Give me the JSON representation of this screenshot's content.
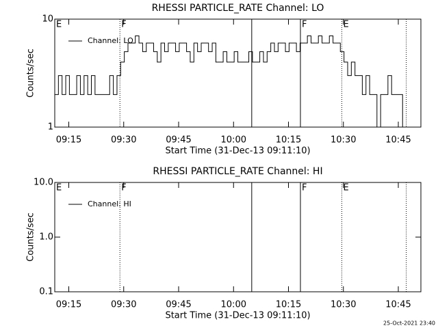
{
  "chart_data": [
    {
      "type": "line",
      "step": true,
      "log_y": true,
      "title": "RHESSI PARTICLE_RATE Channel: LO",
      "y_label": "Counts/sec",
      "x_label": "Start Time (31-Dec-13 09:11:10)",
      "xlim": [
        0,
        100
      ],
      "ylim": [
        1,
        10
      ],
      "xticks": [
        {
          "value": 3.833,
          "label": "09:15"
        },
        {
          "value": 18.833,
          "label": "09:30"
        },
        {
          "value": 33.833,
          "label": "09:45"
        },
        {
          "value": 48.833,
          "label": "10:00"
        },
        {
          "value": 63.833,
          "label": "10:15"
        },
        {
          "value": 78.833,
          "label": "10:30"
        },
        {
          "value": 93.833,
          "label": "10:45"
        }
      ],
      "yticks": [
        1,
        10
      ],
      "annotations": [
        {
          "x": 0,
          "label": "E"
        },
        {
          "x": 17.8,
          "label": "F",
          "line": "dotted"
        },
        {
          "x": 53.8,
          "line": "solid"
        },
        {
          "x": 67.1,
          "label": "F",
          "line": "solid"
        },
        {
          "x": 78.4,
          "label": "E",
          "line": "dotted"
        },
        {
          "x": 96,
          "line": "dotted"
        }
      ],
      "x": [
        0,
        1,
        2,
        3,
        4,
        5,
        6,
        7,
        8,
        9,
        10,
        11,
        12,
        13,
        14,
        15,
        16,
        17,
        18,
        19,
        20,
        21,
        22,
        23,
        24,
        25,
        26,
        27,
        28,
        29,
        30,
        31,
        32,
        33,
        34,
        35,
        36,
        37,
        38,
        39,
        40,
        41,
        42,
        43,
        44,
        45,
        46,
        47,
        48,
        49,
        50,
        51,
        52,
        53,
        54,
        55,
        56,
        57,
        58,
        59,
        60,
        61,
        62,
        63,
        64,
        65,
        66,
        67,
        68,
        69,
        70,
        71,
        72,
        73,
        74,
        75,
        76,
        77,
        78,
        79,
        80,
        81,
        82,
        83,
        84,
        85,
        86,
        87,
        88,
        89,
        90,
        91,
        92,
        93,
        94,
        95
      ],
      "series": [
        {
          "name": "Channel: LO",
          "color": "#000000",
          "values": [
            2,
            3,
            2,
            3,
            2,
            2,
            3,
            2,
            3,
            2,
            3,
            2,
            2,
            2,
            2,
            3,
            2,
            3,
            4,
            5,
            6,
            6,
            7,
            6,
            5,
            6,
            6,
            5,
            4,
            6,
            5,
            6,
            6,
            5,
            6,
            6,
            5,
            4,
            6,
            5,
            6,
            6,
            5,
            6,
            4,
            4,
            5,
            4,
            4,
            5,
            4,
            4,
            4,
            5,
            4,
            4,
            5,
            4,
            5,
            6,
            5,
            6,
            6,
            5,
            6,
            6,
            5,
            6,
            6,
            7,
            6,
            6,
            7,
            6,
            6,
            7,
            6,
            6,
            5,
            4,
            3,
            4,
            3,
            3,
            2,
            3,
            2,
            2,
            1,
            2,
            2,
            3,
            2,
            2,
            2,
            1
          ]
        }
      ]
    },
    {
      "type": "line",
      "step": true,
      "log_y": true,
      "title": "RHESSI PARTICLE_RATE Channel: HI",
      "y_label": "Counts/sec",
      "x_label": "Start Time (31-Dec-13 09:11:10)",
      "xlim": [
        0,
        100
      ],
      "ylim": [
        0.1,
        10
      ],
      "xticks": [
        {
          "value": 3.833,
          "label": "09:15"
        },
        {
          "value": 18.833,
          "label": "09:30"
        },
        {
          "value": 33.833,
          "label": "09:45"
        },
        {
          "value": 48.833,
          "label": "10:00"
        },
        {
          "value": 63.833,
          "label": "10:15"
        },
        {
          "value": 78.833,
          "label": "10:30"
        },
        {
          "value": 93.833,
          "label": "10:45"
        }
      ],
      "yticks": [
        0.1,
        {
          "value": 1,
          "label": "1.0"
        },
        {
          "value": 10,
          "label": "10.0"
        }
      ],
      "annotations": [
        {
          "x": 0,
          "label": "E"
        },
        {
          "x": 17.8,
          "label": "F",
          "line": "dotted"
        },
        {
          "x": 53.8,
          "line": "solid"
        },
        {
          "x": 67.1,
          "label": "F",
          "line": "solid"
        },
        {
          "x": 78.4,
          "label": "E",
          "line": "dotted"
        },
        {
          "x": 96,
          "line": "dotted"
        }
      ],
      "series": [
        {
          "name": "Channel: HI",
          "color": "#000000"
        }
      ]
    }
  ],
  "footer": "25-Oct-2021 23:40"
}
